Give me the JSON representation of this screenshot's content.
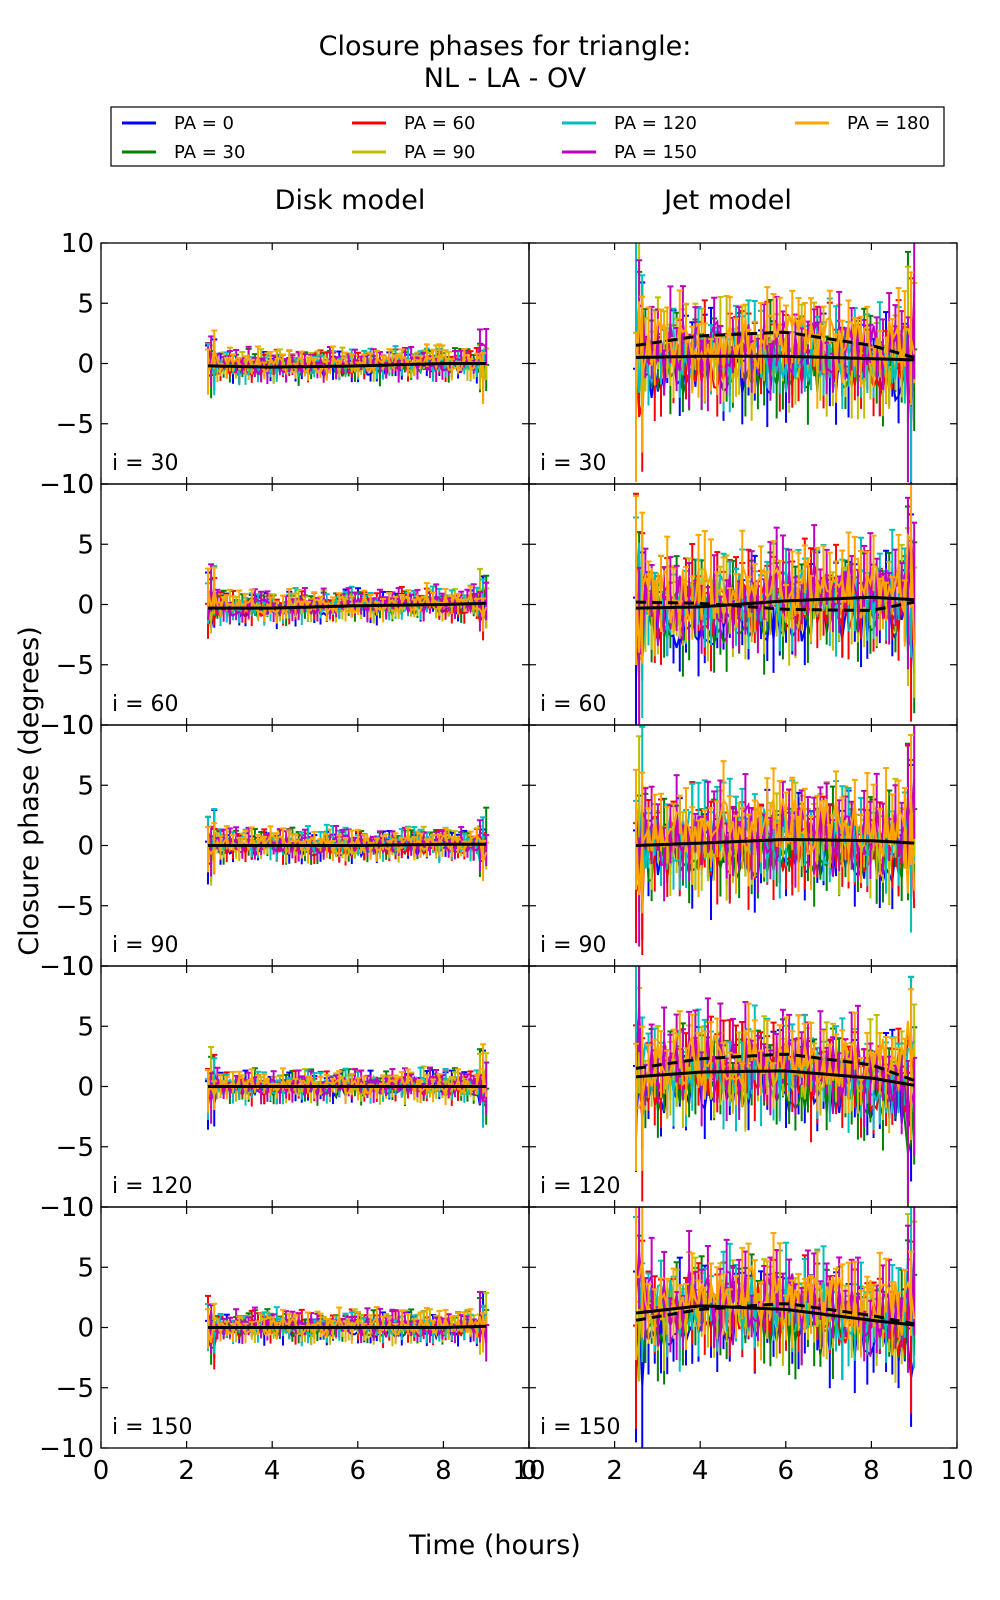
{
  "chart_data": {
    "type": "line",
    "title": [
      "Closure phases for triangle:",
      "NL - LA - OV"
    ],
    "xlabel": "Time (hours)",
    "ylabel": "Closure phase (degrees)",
    "xlim": [
      0,
      10
    ],
    "ylim": [
      -10,
      10
    ],
    "x_ticks": [
      0,
      2,
      4,
      6,
      8,
      10
    ],
    "x_tick_labels": [
      "0",
      "2",
      "4",
      "6",
      "8",
      "10"
    ],
    "y_ticks": [
      -10,
      -5,
      0,
      5,
      10
    ],
    "y_tick_labels": [
      "−10",
      "−5",
      "0",
      "5",
      "10"
    ],
    "grid": false,
    "legend_placement": "top",
    "x_range_of_data": [
      2.5,
      9.0
    ],
    "columns": [
      {
        "title": "Disk model"
      },
      {
        "title": "Jet model"
      }
    ],
    "rows": [
      {
        "label": "i = 30"
      },
      {
        "label": "i = 60"
      },
      {
        "label": "i = 90"
      },
      {
        "label": "i = 120"
      },
      {
        "label": "i = 150"
      }
    ],
    "series": [
      {
        "name": "PA = 0",
        "color": "#0000ff"
      },
      {
        "name": "PA = 30",
        "color": "#008000"
      },
      {
        "name": "PA = 60",
        "color": "#ff0000"
      },
      {
        "name": "PA = 90",
        "color": "#bfbf00"
      },
      {
        "name": "PA = 120",
        "color": "#00bfbf"
      },
      {
        "name": "PA = 150",
        "color": "#bf00bf"
      },
      {
        "name": "PA = 180",
        "color": "#ffa500"
      }
    ],
    "model_curves": {
      "disk": [
        {
          "row": "i = 30",
          "x": [
            2.5,
            4,
            6,
            8,
            9
          ],
          "y": [
            -0.2,
            -0.3,
            -0.2,
            0.0,
            0.0
          ]
        },
        {
          "row": "i = 60",
          "x": [
            2.5,
            4,
            6,
            8,
            9
          ],
          "y": [
            -0.3,
            -0.3,
            -0.1,
            0.0,
            0.1
          ]
        },
        {
          "row": "i = 90",
          "x": [
            2.5,
            4,
            6,
            8,
            9
          ],
          "y": [
            0.0,
            0.0,
            0.0,
            0.1,
            0.1
          ]
        },
        {
          "row": "i = 120",
          "x": [
            2.5,
            4,
            6,
            8,
            9
          ],
          "y": [
            0.0,
            0.0,
            0.0,
            0.0,
            0.0
          ]
        },
        {
          "row": "i = 150",
          "x": [
            2.5,
            4,
            6,
            8,
            9
          ],
          "y": [
            0.0,
            0.0,
            0.0,
            0.0,
            0.1
          ]
        }
      ],
      "jet": [
        {
          "row": "i = 30",
          "x": [
            2.5,
            4,
            6,
            8,
            9
          ],
          "y": [
            0.5,
            0.6,
            0.6,
            0.4,
            0.3
          ]
        },
        {
          "row": "i = 30",
          "x": [
            2.5,
            4,
            6,
            8,
            9
          ],
          "y": [
            1.5,
            2.3,
            2.6,
            1.5,
            0.5
          ]
        },
        {
          "row": "i = 60",
          "x": [
            2.5,
            4,
            6,
            8,
            9
          ],
          "y": [
            -0.3,
            -0.2,
            0.3,
            0.6,
            0.4
          ]
        },
        {
          "row": "i = 60",
          "x": [
            2.5,
            4,
            6,
            8,
            9
          ],
          "y": [
            0.2,
            0.1,
            -0.4,
            -0.5,
            0.2
          ]
        },
        {
          "row": "i = 90",
          "x": [
            2.5,
            4,
            6,
            8,
            9
          ],
          "y": [
            0.0,
            0.2,
            0.5,
            0.4,
            0.2
          ]
        },
        {
          "row": "i = 120",
          "x": [
            2.5,
            4,
            6,
            8,
            9
          ],
          "y": [
            0.8,
            1.2,
            1.3,
            0.7,
            0.1
          ]
        },
        {
          "row": "i = 120",
          "x": [
            2.5,
            4,
            6,
            8,
            9
          ],
          "y": [
            1.5,
            2.3,
            2.7,
            1.8,
            0.5
          ]
        },
        {
          "row": "i = 150",
          "x": [
            2.5,
            4,
            6,
            8,
            9
          ],
          "y": [
            1.2,
            1.8,
            1.5,
            0.6,
            0.2
          ]
        },
        {
          "row": "i = 150",
          "x": [
            2.5,
            4,
            6,
            8,
            9
          ],
          "y": [
            0.6,
            1.5,
            2.0,
            1.0,
            0.3
          ]
        }
      ]
    },
    "noise_amplitude": {
      "disk": 0.9,
      "jet": 3.0
    }
  }
}
